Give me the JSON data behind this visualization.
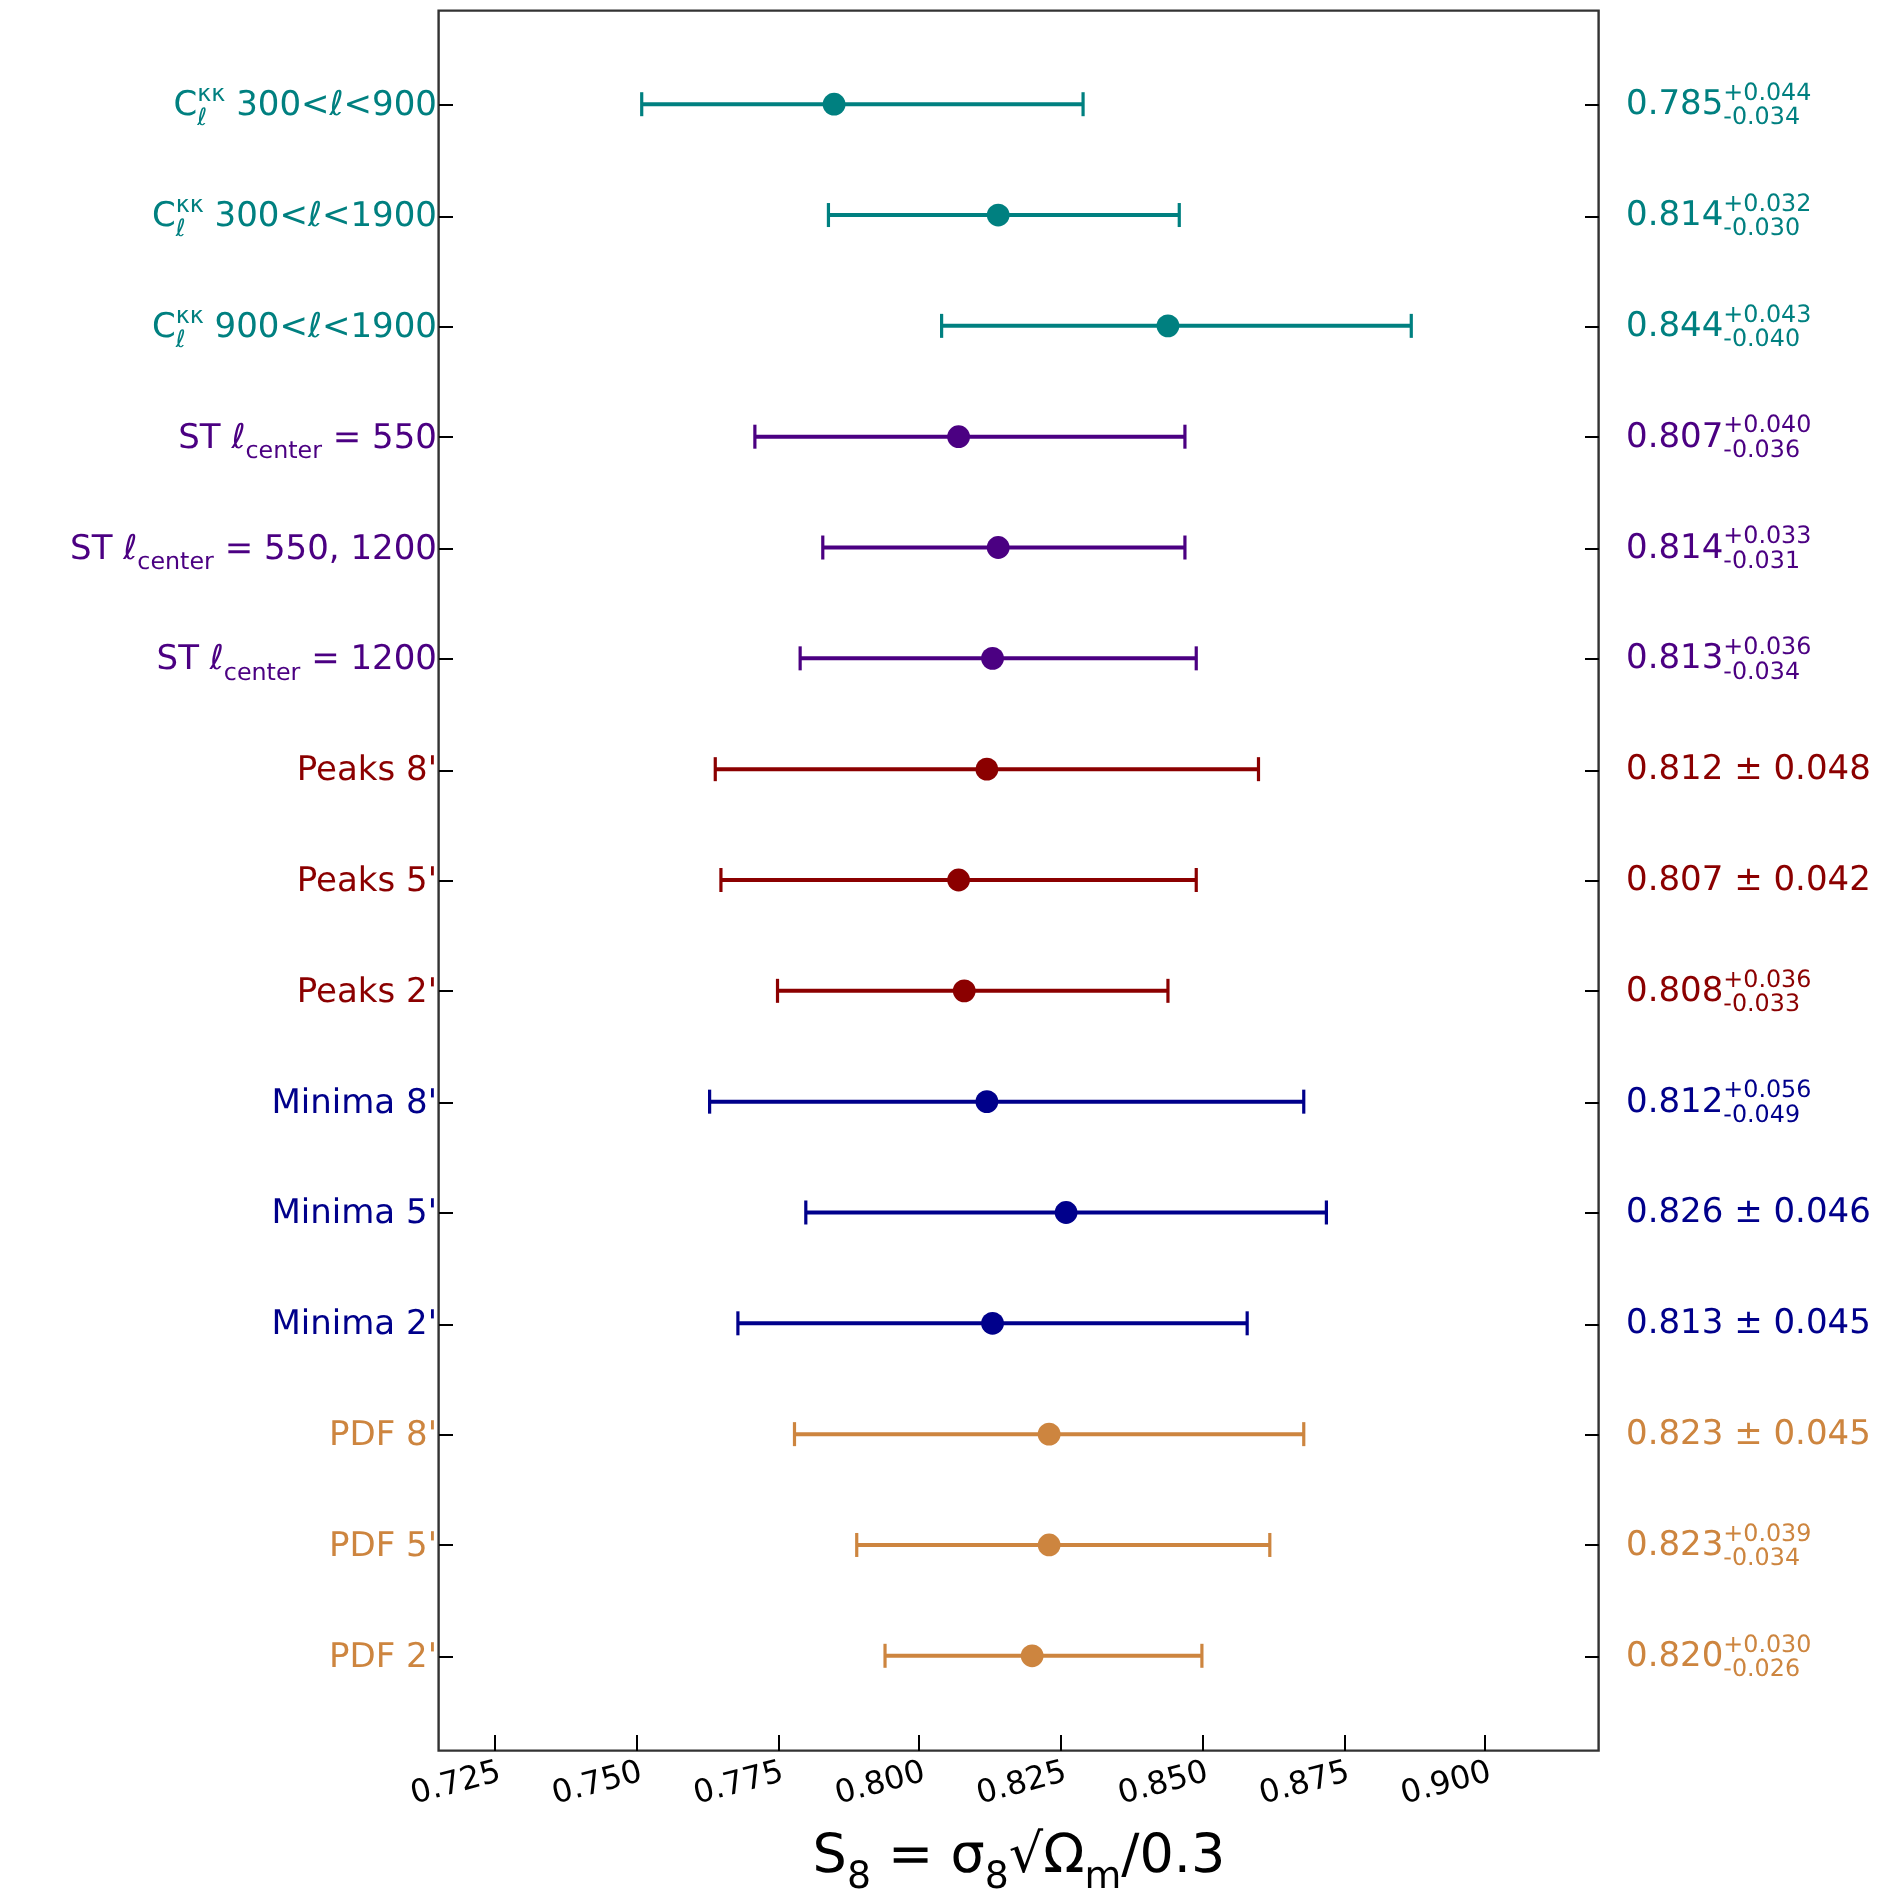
{
  "chart_data": {
    "type": "scatter",
    "orientation": "horizontal",
    "xlabel": "S$_{8}$ = σ$_{8}$√Ω$_{m}$/0.3",
    "marker": "circle",
    "categories": [
      "C$_{ℓ}$$^{κκ}$ 300<ℓ<900",
      "C$_{ℓ}$$^{κκ}$ 300<ℓ<1900",
      "C$_{ℓ}$$^{κκ}$ 900<ℓ<1900",
      "ST ℓ$_{center}$ = 550",
      "ST ℓ$_{center}$ = 550, 1200",
      "ST ℓ$_{center}$ = 1200",
      "Peaks 8'",
      "Peaks 5'",
      "Peaks 2'",
      "Minima 8'",
      "Minima 5'",
      "Minima 2'",
      "PDF 8'",
      "PDF 5'",
      "PDF 2'"
    ],
    "values": [
      0.785,
      0.814,
      0.844,
      0.807,
      0.814,
      0.813,
      0.812,
      0.807,
      0.808,
      0.812,
      0.826,
      0.813,
      0.823,
      0.823,
      0.82
    ],
    "errors": [
      [
        0.751,
        0.829
      ],
      [
        0.784,
        0.846
      ],
      [
        0.804,
        0.887
      ],
      [
        0.771,
        0.847
      ],
      [
        0.783,
        0.847
      ],
      [
        0.779,
        0.849
      ],
      0.048,
      0.042,
      [
        0.775,
        0.844
      ],
      [
        0.763,
        0.868
      ],
      0.046,
      0.045,
      0.045,
      [
        0.789,
        0.862
      ],
      [
        0.794,
        0.85
      ]
    ],
    "annotations": [
      "0.785$^{+0.044}$$_{-0.034}$",
      "0.814$^{+0.032}$$_{-0.030}$",
      "0.844$^{+0.043}$$_{-0.040}$",
      "0.807$^{+0.040}$$_{-0.036}$",
      "0.814$^{+0.033}$$_{-0.031}$",
      "0.813$^{+0.036}$$_{-0.034}$",
      "0.812 ± 0.048",
      "0.807 ± 0.042",
      "0.808$^{+0.036}$$_{-0.033}$",
      "0.812$^{+0.056}$$_{-0.049}$",
      "0.826 ± 0.046",
      "0.813 ± 0.045",
      "0.823 ± 0.045",
      "0.823$^{+0.039}$$_{-0.034}$",
      "0.820$^{+0.030}$$_{-0.026}$"
    ],
    "colors": [
      "#008080",
      "#008080",
      "#008080",
      "#4b0082",
      "#4b0082",
      "#4b0082",
      "#8b0000",
      "#8b0000",
      "#8b0000",
      "#00008b",
      "#00008b",
      "#00008b",
      "#cd853f",
      "#cd853f",
      "#cd853f"
    ],
    "xlim": [
      0.715,
      0.92
    ],
    "xticks": [
      0.725,
      {
        "value": 0.75,
        "label": "0.750"
      },
      0.775,
      {
        "value": 0.8,
        "label": "0.800"
      },
      0.825,
      {
        "value": 0.85,
        "label": "0.850"
      },
      0.875,
      {
        "value": 0.9,
        "label": "0.900"
      }
    ]
  }
}
